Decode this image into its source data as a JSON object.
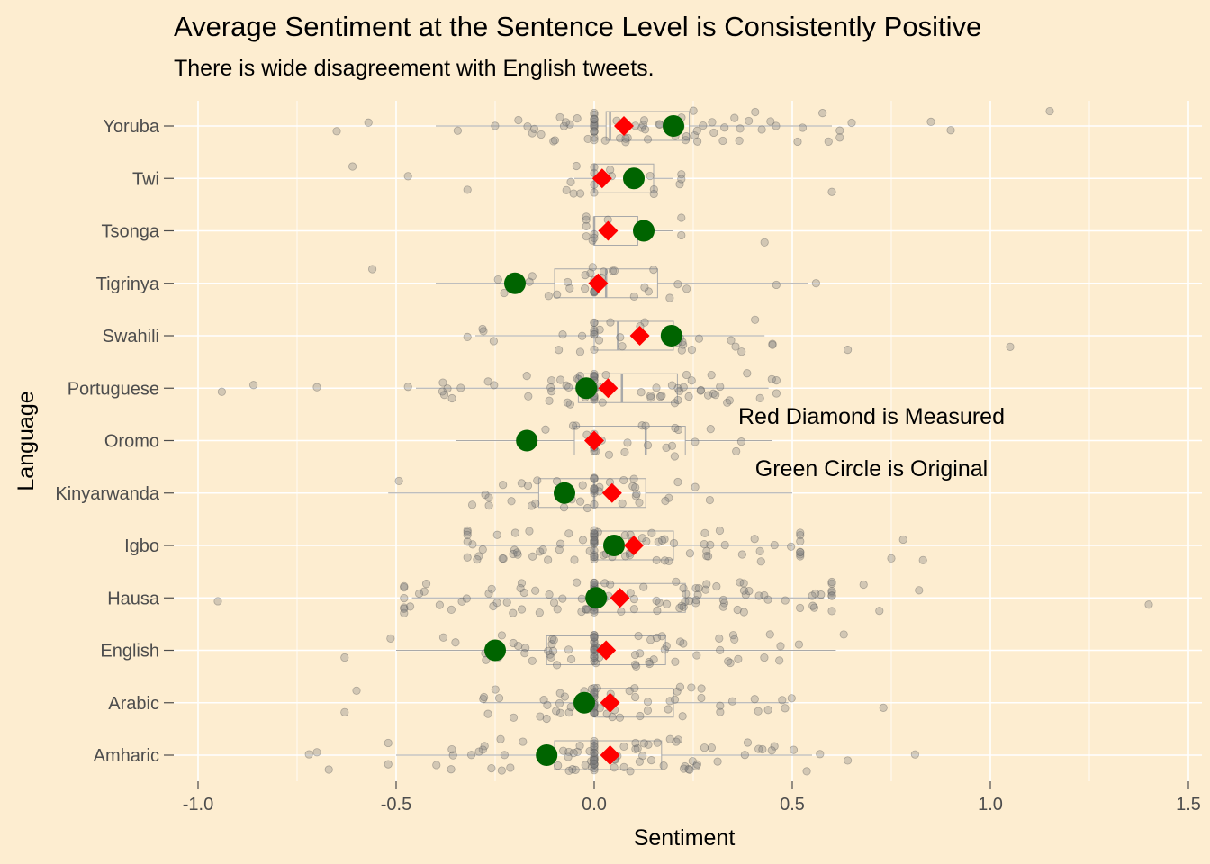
{
  "chart_data": {
    "type": "scatter",
    "title": "Average Sentiment at the Sentence Level is  Consistently Positive",
    "subtitle": "There is wide disagreement with English tweets.",
    "xlabel": "Sentiment",
    "ylabel": "Language",
    "xlim": [
      -1.0,
      1.5
    ],
    "xticks": [
      "-1.0",
      "-0.5",
      "0.0",
      "0.5",
      "1.0",
      "1.5"
    ],
    "grid": true,
    "categories": [
      "Amharic",
      "Arabic",
      "English",
      "Hausa",
      "Igbo",
      "Kinyarwanda",
      "Oromo",
      "Portuguese",
      "Swahili",
      "Tigrinya",
      "Tsonga",
      "Twi",
      "Yoruba"
    ],
    "series": [
      {
        "name": "Red Diamond is Measured",
        "values": [
          0.04,
          0.04,
          0.03,
          0.065,
          0.1,
          0.045,
          0.0,
          0.035,
          0.115,
          0.01,
          0.035,
          0.02,
          0.075
        ]
      },
      {
        "name": "Green Circle is Original",
        "values": [
          -0.12,
          -0.025,
          -0.25,
          0.005,
          0.05,
          -0.075,
          -0.17,
          -0.02,
          0.195,
          -0.2,
          0.125,
          0.1,
          0.2
        ]
      }
    ],
    "boxplots": [
      {
        "q1": -0.1,
        "median": 0.0,
        "q3": 0.17,
        "lo": -0.5,
        "hi": 0.55
      },
      {
        "q1": 0.0,
        "median": 0.0,
        "q3": 0.2,
        "lo": -0.28,
        "hi": 0.49
      },
      {
        "q1": -0.12,
        "median": 0.0,
        "q3": 0.18,
        "lo": -0.5,
        "hi": 0.61
      },
      {
        "q1": 0.0,
        "median": 0.0,
        "q3": 0.23,
        "lo": -0.46,
        "hi": 0.58
      },
      {
        "q1": 0.0,
        "median": 0.0,
        "q3": 0.2,
        "lo": -0.3,
        "hi": 0.5
      },
      {
        "q1": -0.14,
        "median": 0.0,
        "q3": 0.13,
        "lo": -0.52,
        "hi": 0.5
      },
      {
        "q1": -0.05,
        "median": 0.13,
        "q3": 0.23,
        "lo": -0.35,
        "hi": 0.45
      },
      {
        "q1": -0.04,
        "median": 0.07,
        "q3": 0.21,
        "lo": -0.45,
        "hi": 0.44
      },
      {
        "q1": 0.0,
        "median": 0.06,
        "q3": 0.2,
        "lo": -0.3,
        "hi": 0.43
      },
      {
        "q1": -0.1,
        "median": 0.03,
        "q3": 0.16,
        "lo": -0.4,
        "hi": 0.54
      },
      {
        "q1": 0.0,
        "median": 0.0,
        "q3": 0.11,
        "lo": 0.0,
        "hi": 0.2
      },
      {
        "q1": 0.0,
        "median": 0.0,
        "q3": 0.15,
        "lo": -0.05,
        "hi": 0.2
      },
      {
        "q1": 0.03,
        "median": 0.04,
        "q3": 0.24,
        "lo": -0.4,
        "hi": 0.6
      }
    ],
    "outliers": [
      {
        "category": "Amharic",
        "values": [
          -0.7,
          -0.72,
          -0.67,
          0.64,
          0.81
        ]
      },
      {
        "category": "Arabic",
        "values": [
          -0.63,
          -0.6,
          0.73
        ]
      },
      {
        "category": "English",
        "values": [
          -0.63
        ]
      },
      {
        "category": "Hausa",
        "values": [
          -0.95,
          0.68,
          0.72,
          0.82,
          1.4
        ]
      },
      {
        "category": "Igbo",
        "values": [
          0.75,
          0.78,
          0.83
        ]
      },
      {
        "category": "Oromo",
        "values": []
      },
      {
        "category": "Portuguese",
        "values": [
          -0.94,
          -0.86,
          -0.7
        ]
      },
      {
        "category": "Swahili",
        "values": [
          0.64,
          1.05
        ]
      },
      {
        "category": "Tigrinya",
        "values": [
          -0.56
        ]
      },
      {
        "category": "Tsonga",
        "values": [
          0.43
        ]
      },
      {
        "category": "Twi",
        "values": [
          -0.61,
          -0.47,
          -0.32,
          0.6
        ]
      },
      {
        "category": "Yoruba",
        "values": [
          -0.65,
          -0.57,
          0.65,
          0.85,
          0.9,
          1.15
        ]
      }
    ],
    "spread": [
      0.55,
      0.36,
      0.45,
      0.6,
      0.5,
      0.4,
      0.35,
      0.45,
      0.38,
      0.4,
      0.22,
      0.3,
      0.45
    ],
    "counts": [
      70,
      55,
      60,
      95,
      75,
      35,
      22,
      60,
      28,
      25,
      8,
      14,
      60
    ],
    "annotations": [
      "Red Diamond is Measured",
      "Green Circle is Original"
    ],
    "colors": {
      "background": "#FDEDD0",
      "grid": "#FFFFFF",
      "diamond": "#FF0000",
      "circle": "#006400",
      "jitter": "#808080",
      "box": "#A9A9A9"
    }
  }
}
